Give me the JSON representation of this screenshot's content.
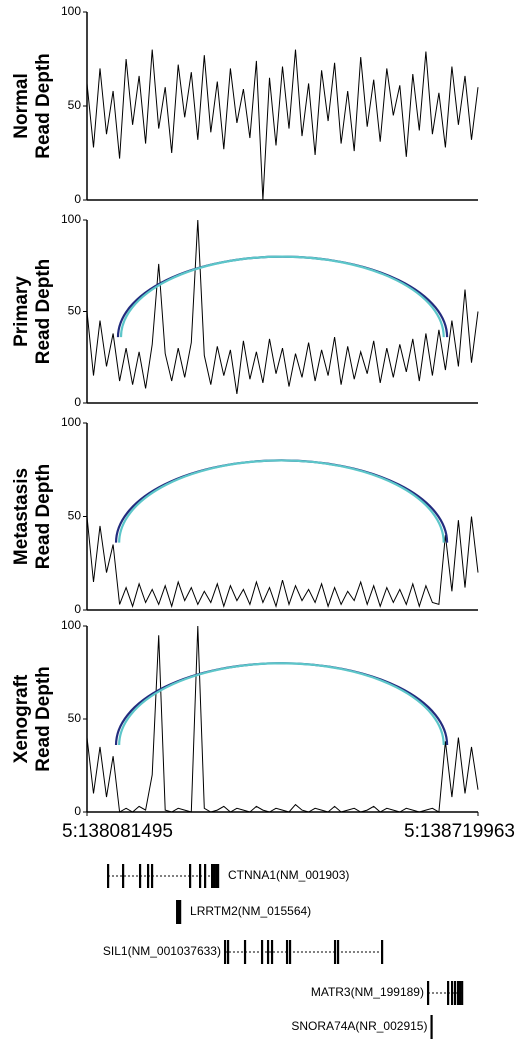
{
  "chart_data": [
    {
      "type": "line",
      "y_label": [
        "Normal",
        "Read Depth"
      ],
      "color": "#000000",
      "xlim": [
        138081495,
        138719963
      ],
      "ylim": [
        0,
        100
      ],
      "yticks": [
        0,
        50,
        100
      ],
      "x": [
        138081495,
        138092136,
        138102777,
        138113418,
        138124059,
        138134700,
        138145341,
        138155982,
        138166623,
        138177264,
        138187905,
        138198546,
        138209187,
        138219828,
        138230469,
        138241110,
        138251751,
        138262392,
        138273033,
        138283674,
        138294315,
        138304956,
        138315597,
        138326238,
        138336879,
        138347520,
        138358161,
        138368802,
        138379443,
        138390084,
        138400725,
        138411366,
        138422007,
        138432648,
        138443289,
        138453930,
        138464571,
        138475212,
        138485853,
        138496494,
        138507135,
        138517776,
        138528417,
        138539058,
        138549699,
        138560340,
        138570981,
        138581622,
        138592263,
        138602904,
        138613545,
        138624186,
        138634827,
        138645468,
        138656109,
        138666750,
        138677391,
        138688032,
        138698673,
        138709314,
        138719955
      ],
      "values": [
        62,
        28,
        70,
        35,
        58,
        22,
        75,
        40,
        66,
        30,
        80,
        38,
        60,
        25,
        72,
        44,
        68,
        32,
        77,
        36,
        63,
        27,
        70,
        41,
        59,
        33,
        74,
        0,
        65,
        29,
        71,
        38,
        80,
        34,
        62,
        24,
        69,
        42,
        73,
        30,
        58,
        26,
        76,
        39,
        64,
        31,
        70,
        45,
        61,
        23,
        67,
        37,
        79,
        35,
        57,
        28,
        71,
        40,
        66,
        32,
        60
      ],
      "arcs": []
    },
    {
      "type": "line",
      "y_label": [
        "Primary",
        "Read Depth"
      ],
      "color": "#000000",
      "xlim": [
        138081495,
        138719963
      ],
      "ylim": [
        0,
        100
      ],
      "yticks": [
        0,
        50,
        100
      ],
      "x": [
        138081495,
        138092136,
        138102777,
        138113418,
        138124059,
        138134700,
        138145341,
        138155982,
        138166623,
        138177264,
        138187905,
        138198546,
        138209187,
        138219828,
        138230469,
        138241110,
        138251751,
        138262392,
        138273033,
        138283674,
        138294315,
        138304956,
        138315597,
        138326238,
        138336879,
        138347520,
        138358161,
        138368802,
        138379443,
        138390084,
        138400725,
        138411366,
        138422007,
        138432648,
        138443289,
        138453930,
        138464571,
        138475212,
        138485853,
        138496494,
        138507135,
        138517776,
        138528417,
        138539058,
        138549699,
        138560340,
        138570981,
        138581622,
        138592263,
        138602904,
        138613545,
        138624186,
        138634827,
        138645468,
        138656109,
        138666750,
        138677391,
        138688032,
        138698673,
        138709314,
        138719955
      ],
      "values": [
        50,
        15,
        45,
        20,
        38,
        12,
        30,
        10,
        28,
        8,
        32,
        76,
        27,
        12,
        30,
        14,
        33,
        100,
        26,
        10,
        31,
        15,
        29,
        5,
        34,
        13,
        28,
        11,
        35,
        16,
        30,
        9,
        27,
        14,
        33,
        12,
        29,
        15,
        36,
        10,
        31,
        13,
        28,
        16,
        34,
        11,
        30,
        14,
        32,
        17,
        35,
        12,
        38,
        15,
        40,
        18,
        45,
        20,
        62,
        22,
        50
      ],
      "arcs": [
        {
          "color": "#232c7e",
          "start": 138132100,
          "end": 138669500,
          "height": 80
        },
        {
          "color": "#5cc6c9",
          "start": 138137000,
          "end": 138664000,
          "height": 80
        }
      ]
    },
    {
      "type": "line",
      "y_label": [
        "Metastasis",
        "Read Depth"
      ],
      "color": "#000000",
      "xlim": [
        138081495,
        138719963
      ],
      "ylim": [
        0,
        100
      ],
      "yticks": [
        0,
        50,
        100
      ],
      "x": [
        138081495,
        138092136,
        138102777,
        138113418,
        138124059,
        138134700,
        138145341,
        138155982,
        138166623,
        138177264,
        138187905,
        138198546,
        138209187,
        138219828,
        138230469,
        138241110,
        138251751,
        138262392,
        138273033,
        138283674,
        138294315,
        138304956,
        138315597,
        138326238,
        138336879,
        138347520,
        138358161,
        138368802,
        138379443,
        138390084,
        138400725,
        138411366,
        138422007,
        138432648,
        138443289,
        138453930,
        138464571,
        138475212,
        138485853,
        138496494,
        138507135,
        138517776,
        138528417,
        138539058,
        138549699,
        138560340,
        138570981,
        138581622,
        138592263,
        138602904,
        138613545,
        138624186,
        138634827,
        138645468,
        138656109,
        138666750,
        138677391,
        138688032,
        138698673,
        138709314,
        138719955
      ],
      "values": [
        50,
        15,
        45,
        20,
        35,
        3,
        12,
        2,
        14,
        4,
        11,
        3,
        13,
        2,
        15,
        5,
        12,
        3,
        10,
        4,
        14,
        2,
        13,
        5,
        11,
        3,
        15,
        4,
        12,
        2,
        16,
        3,
        13,
        5,
        11,
        4,
        14,
        2,
        12,
        3,
        10,
        5,
        15,
        3,
        13,
        2,
        12,
        4,
        11,
        3,
        14,
        2,
        13,
        4,
        3,
        40,
        10,
        48,
        12,
        50,
        20
      ],
      "arcs": [
        {
          "color": "#232c7e",
          "start": 138128900,
          "end": 138669500,
          "height": 80
        },
        {
          "color": "#5cc6c9",
          "start": 138134000,
          "end": 138664000,
          "height": 80
        }
      ]
    },
    {
      "type": "line",
      "y_label": [
        "Xenograft",
        "Read Depth"
      ],
      "color": "#000000",
      "xlim": [
        138081495,
        138719963
      ],
      "ylim": [
        0,
        100
      ],
      "yticks": [
        0,
        50,
        100
      ],
      "xticks": [
        {
          "value": 138081495,
          "label": "5:138081495"
        },
        {
          "value": 138719963,
          "label": "5:138719963"
        }
      ],
      "x": [
        138081495,
        138092136,
        138102777,
        138113418,
        138124059,
        138134700,
        138145341,
        138155982,
        138166623,
        138177264,
        138187905,
        138198546,
        138209187,
        138219828,
        138230469,
        138241110,
        138251751,
        138262392,
        138273033,
        138283674,
        138294315,
        138304956,
        138315597,
        138326238,
        138336879,
        138347520,
        138358161,
        138368802,
        138379443,
        138390084,
        138400725,
        138411366,
        138422007,
        138432648,
        138443289,
        138453930,
        138464571,
        138475212,
        138485853,
        138496494,
        138507135,
        138517776,
        138528417,
        138539058,
        138549699,
        138560340,
        138570981,
        138581622,
        138592263,
        138602904,
        138613545,
        138624186,
        138634827,
        138645468,
        138656109,
        138666750,
        138677391,
        138688032,
        138698673,
        138709314,
        138719955
      ],
      "values": [
        40,
        10,
        35,
        8,
        30,
        0,
        2,
        0,
        3,
        1,
        20,
        95,
        1,
        0,
        2,
        1,
        0,
        100,
        2,
        0,
        1,
        3,
        0,
        2,
        1,
        0,
        3,
        1,
        0,
        2,
        1,
        0,
        4,
        1,
        0,
        2,
        1,
        0,
        3,
        0,
        1,
        2,
        0,
        1,
        3,
        0,
        2,
        1,
        0,
        2,
        1,
        0,
        1,
        2,
        0,
        38,
        8,
        40,
        10,
        35,
        12
      ],
      "arcs": [
        {
          "color": "#232c7e",
          "start": 138128900,
          "end": 138669500,
          "height": 80
        },
        {
          "color": "#5cc6c9",
          "start": 138134000,
          "end": 138664000,
          "height": 80
        }
      ]
    },
    {
      "type": "genes",
      "xlim": [
        138081495,
        138719963
      ],
      "genes": [
        {
          "label": "CTNNA1(NM_001903)",
          "start": 138115800,
          "end": 138295400,
          "exons": [
            138115800,
            138140300,
            138168000,
            138181100,
            138187600,
            138249700,
            138266000,
            138274200,
            138285600,
            138288900,
            138292200,
            138295400
          ]
        },
        {
          "label": "LRRTM2(NM_015564)",
          "start": 138228500,
          "end": 138233400,
          "exons": [
            138228500,
            138231000,
            138233400
          ]
        },
        {
          "label": "SIL1(NM_001037633)",
          "start": 138306800,
          "end": 138563200,
          "exons": [
            138306800,
            138311700,
            138339400,
            138367200,
            138377000,
            138383500,
            138408000,
            138412900,
            138486400,
            138491300,
            138563200
          ]
        },
        {
          "label": "MATR3(NM_199189)",
          "start": 138638300,
          "end": 138693900,
          "exons": [
            138638300,
            138671000,
            138677500,
            138682400,
            138687300,
            138690600,
            138693900
          ]
        },
        {
          "label": "SNORA74A(NR_002915)",
          "start": 138644000,
          "end": 138644600,
          "exons": [
            138644000
          ]
        }
      ]
    }
  ]
}
